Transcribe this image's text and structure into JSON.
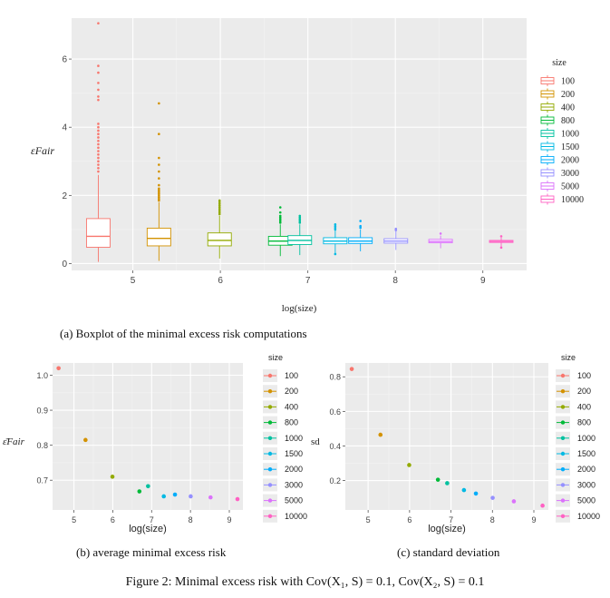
{
  "colors": {
    "panel_bg": "#ebebeb",
    "grid_major": "#ffffff",
    "grid_minor": "#f3f3f3",
    "sizes": [
      "#F8766D",
      "#D39200",
      "#93AA00",
      "#00BA38",
      "#00C19F",
      "#00B9E3",
      "#00ADFA",
      "#9590FF",
      "#DB72FB",
      "#FF61C3"
    ]
  },
  "legend": {
    "title": "size",
    "labels": [
      "100",
      "200",
      "400",
      "800",
      "1000",
      "1500",
      "2000",
      "3000",
      "5000",
      "10000"
    ]
  },
  "panel_a": {
    "ylabel": "εFair",
    "xlabel": "log(size)",
    "caption": "(a) Boxplot of the minimal excess risk computations"
  },
  "panel_b": {
    "ylabel": "ε̄Fair",
    "xlabel": "log(size)",
    "caption": "(b) average minimal excess risk"
  },
  "panel_c": {
    "ylabel": "sd",
    "xlabel": "log(size)",
    "caption": "(c) standard deviation"
  },
  "figure_caption": "Figure 2: Minimal excess risk with Cov(X₁, S) = 0.1, Cov(X₂, S) = 0.1",
  "chart_data": [
    {
      "type": "box",
      "ylabel": "εFair",
      "xlabel": "log(size)",
      "xlim": [
        4.3,
        9.5
      ],
      "ylim": [
        -0.2,
        7.2
      ],
      "xticks": [
        5,
        6,
        7,
        8,
        9
      ],
      "yticks": [
        0,
        2,
        4,
        6
      ],
      "grid": true,
      "legend_position": "right",
      "boxes": [
        {
          "size": "100",
          "x": 4.605,
          "q1": 0.48,
          "median": 0.8,
          "q3": 1.32,
          "wlo": 0.05,
          "whi": 2.6,
          "outliers": [
            2.7,
            2.8,
            2.9,
            3.0,
            3.1,
            3.2,
            3.3,
            3.4,
            3.5,
            3.6,
            3.7,
            3.8,
            3.9,
            4.0,
            4.1,
            4.8,
            4.9,
            5.1,
            5.3,
            5.6,
            5.8,
            7.05
          ]
        },
        {
          "size": "200",
          "x": 5.298,
          "q1": 0.52,
          "median": 0.74,
          "q3": 1.04,
          "wlo": 0.08,
          "whi": 1.8,
          "outliers": [
            1.85,
            1.9,
            1.95,
            2.0,
            2.05,
            2.1,
            2.15,
            2.2,
            2.3,
            2.5,
            2.7,
            2.9,
            3.1,
            3.8,
            4.7
          ]
        },
        {
          "size": "400",
          "x": 5.991,
          "q1": 0.52,
          "median": 0.68,
          "q3": 0.9,
          "wlo": 0.15,
          "whi": 1.4,
          "outliers": [
            1.45,
            1.5,
            1.55,
            1.6,
            1.65,
            1.7,
            1.75,
            1.8,
            1.85
          ]
        },
        {
          "size": "800",
          "x": 6.685,
          "q1": 0.54,
          "median": 0.66,
          "q3": 0.8,
          "wlo": 0.22,
          "whi": 1.15,
          "outliers": [
            1.2,
            1.25,
            1.3,
            1.35,
            1.4,
            1.5,
            1.65
          ]
        },
        {
          "size": "1000",
          "x": 6.908,
          "q1": 0.56,
          "median": 0.68,
          "q3": 0.82,
          "wlo": 0.25,
          "whi": 1.15,
          "outliers": [
            1.2,
            1.25,
            1.3,
            1.35,
            1.4
          ]
        },
        {
          "size": "1500",
          "x": 7.313,
          "q1": 0.58,
          "median": 0.66,
          "q3": 0.76,
          "wlo": 0.3,
          "whi": 0.98,
          "outliers": [
            1.0,
            1.05,
            1.1,
            1.15,
            0.28
          ]
        },
        {
          "size": "2000",
          "x": 7.601,
          "q1": 0.59,
          "median": 0.66,
          "q3": 0.76,
          "wlo": 0.36,
          "whi": 1.0,
          "outliers": [
            1.05,
            1.1,
            1.25
          ]
        },
        {
          "size": "3000",
          "x": 8.006,
          "q1": 0.6,
          "median": 0.66,
          "q3": 0.73,
          "wlo": 0.4,
          "whi": 0.95,
          "outliers": [
            0.98,
            1.02
          ]
        },
        {
          "size": "5000",
          "x": 8.517,
          "q1": 0.61,
          "median": 0.65,
          "q3": 0.71,
          "wlo": 0.45,
          "whi": 0.82,
          "outliers": [
            0.88
          ]
        },
        {
          "size": "10000",
          "x": 9.21,
          "q1": 0.62,
          "median": 0.65,
          "q3": 0.68,
          "wlo": 0.5,
          "whi": 0.76,
          "outliers": [
            0.47,
            0.8
          ]
        }
      ]
    },
    {
      "type": "scatter",
      "ylabel": "ε̄Fair",
      "xlabel": "log(size)",
      "xlim": [
        4.45,
        9.35
      ],
      "ylim": [
        0.615,
        1.035
      ],
      "xticks": [
        5,
        6,
        7,
        8,
        9
      ],
      "yticks": [
        0.7,
        0.8,
        0.9,
        1.0
      ],
      "ytick_labels": [
        "0.7",
        "0.8",
        "0.9",
        "1.0"
      ],
      "grid": true,
      "legend_position": "right",
      "points": [
        {
          "size": "100",
          "x": 4.605,
          "y": 1.02
        },
        {
          "size": "200",
          "x": 5.298,
          "y": 0.815
        },
        {
          "size": "400",
          "x": 5.991,
          "y": 0.71
        },
        {
          "size": "800",
          "x": 6.685,
          "y": 0.668
        },
        {
          "size": "1000",
          "x": 6.908,
          "y": 0.683
        },
        {
          "size": "1500",
          "x": 7.313,
          "y": 0.654
        },
        {
          "size": "2000",
          "x": 7.601,
          "y": 0.659
        },
        {
          "size": "3000",
          "x": 8.006,
          "y": 0.654
        },
        {
          "size": "5000",
          "x": 8.517,
          "y": 0.651
        },
        {
          "size": "10000",
          "x": 9.21,
          "y": 0.646
        }
      ]
    },
    {
      "type": "scatter",
      "ylabel": "sd",
      "xlabel": "log(size)",
      "xlim": [
        4.45,
        9.35
      ],
      "ylim": [
        0.03,
        0.88
      ],
      "xticks": [
        5,
        6,
        7,
        8,
        9
      ],
      "yticks": [
        0.2,
        0.4,
        0.6,
        0.8
      ],
      "grid": true,
      "legend_position": "right",
      "points": [
        {
          "size": "100",
          "x": 4.605,
          "y": 0.845
        },
        {
          "size": "200",
          "x": 5.298,
          "y": 0.465
        },
        {
          "size": "400",
          "x": 5.991,
          "y": 0.29
        },
        {
          "size": "800",
          "x": 6.685,
          "y": 0.205
        },
        {
          "size": "1000",
          "x": 6.908,
          "y": 0.185
        },
        {
          "size": "1500",
          "x": 7.313,
          "y": 0.145
        },
        {
          "size": "2000",
          "x": 7.601,
          "y": 0.125
        },
        {
          "size": "3000",
          "x": 8.006,
          "y": 0.1
        },
        {
          "size": "5000",
          "x": 8.517,
          "y": 0.08
        },
        {
          "size": "10000",
          "x": 9.21,
          "y": 0.055
        }
      ]
    }
  ]
}
